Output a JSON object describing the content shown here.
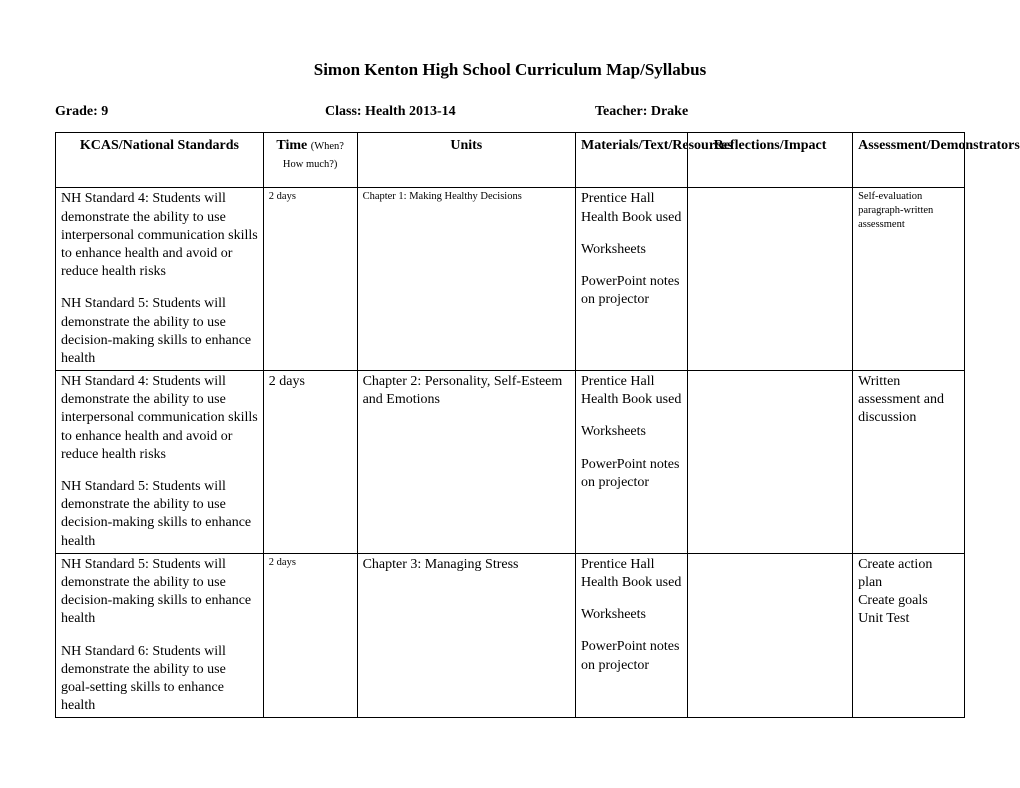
{
  "title": "Simon Kenton High School Curriculum Map/Syllabus",
  "meta": {
    "grade": "Grade: 9",
    "class": "Class: Health 2013-14",
    "teacher": "Teacher: Drake"
  },
  "headers": {
    "standards": "KCAS/National Standards",
    "time_main": "Time ",
    "time_sub": "(When? How much?)",
    "units": "Units",
    "materials": "Materials/Text/Resources",
    "reflections": "Reflections/Impact",
    "assessment": "Assessment/Demonstrators"
  },
  "rows": [
    {
      "standards_a": "NH Standard 4: Students will demonstrate the ability to use interpersonal communication skills to enhance health and avoid or reduce health risks",
      "standards_b": "NH Standard 5: Students will demonstrate the ability to use decision-making skills to enhance health",
      "time": "2 days",
      "time_small": true,
      "units": "Chapter 1: Making Healthy Decisions",
      "units_small": true,
      "materials_a": "Prentice Hall Health Book used",
      "materials_b": "Worksheets",
      "materials_c": "PowerPoint notes on projector",
      "reflections": "",
      "assessment": "Self-evaluation paragraph-written assessment",
      "assessment_small": true
    },
    {
      "standards_a": "NH Standard 4: Students will demonstrate the ability to use interpersonal communication skills to enhance health and avoid or reduce health risks",
      "standards_b": "NH Standard 5: Students will demonstrate the ability to use decision-making skills to enhance health",
      "time": "2 days",
      "time_small": false,
      "units": "Chapter 2: Personality, Self-Esteem and Emotions",
      "units_small": false,
      "materials_a": "Prentice Hall Health Book used",
      "materials_b": "Worksheets",
      "materials_c": "PowerPoint notes on projector",
      "reflections": "",
      "assessment": "Written assessment and discussion",
      "assessment_small": false
    },
    {
      "standards_a": "NH Standard 5: Students will demonstrate the ability to use decision-making skills to enhance health",
      "standards_b": "NH Standard 6: Students will demonstrate the ability to use goal-setting skills to enhance health",
      "time": "2 days",
      "time_small": true,
      "units": "Chapter 3: Managing Stress",
      "units_small": false,
      "materials_a": "Prentice Hall Health Book used",
      "materials_b": "Worksheets",
      "materials_c": "PowerPoint notes on projector",
      "reflections": "",
      "assessment": "Create action plan\nCreate goals\nUnit Test",
      "assessment_small": false
    }
  ]
}
